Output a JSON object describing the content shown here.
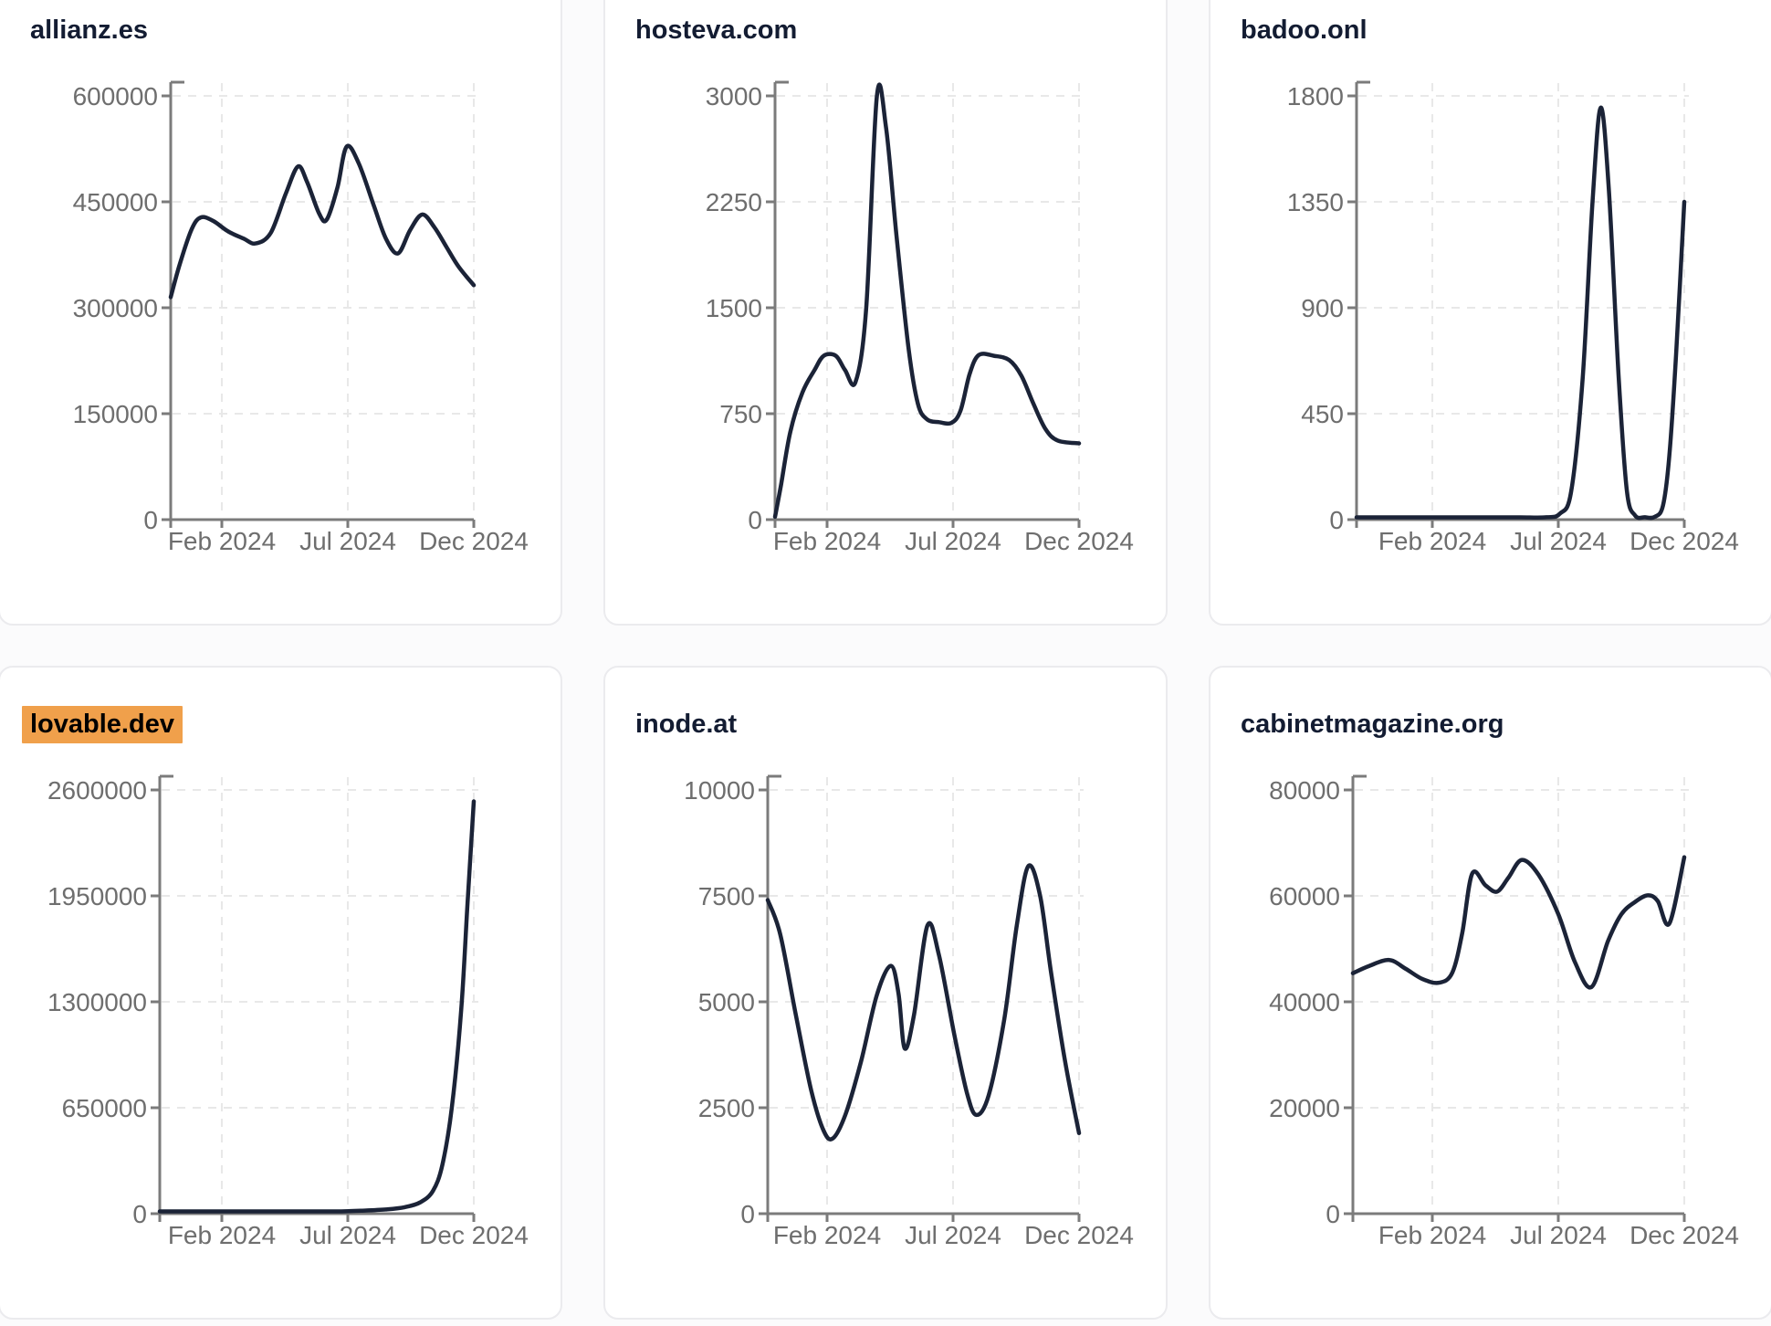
{
  "colors": {
    "page_bg": "#fbfbfc",
    "card_bg": "#ffffff",
    "card_border": "#ebebee",
    "title": "#131c32",
    "highlight": "#F0A04B",
    "line": "#1b2337",
    "axis": "#7b7b7b",
    "tick_label": "#6e6e6e",
    "gridline": "#e8e8e8"
  },
  "chart_data": [
    {
      "type": "line",
      "title": "allianz.es",
      "highlighted": false,
      "x_tick_labels": [
        "Feb 2024",
        "Jul 2024",
        "Dec 2024"
      ],
      "y_ticks": [
        0,
        150000,
        300000,
        450000,
        600000
      ],
      "ylim": [
        0,
        600000
      ],
      "grid": true,
      "legend": "none",
      "points": [
        [
          0.0,
          315000
        ],
        [
          0.03,
          362000
        ],
        [
          0.07,
          412000
        ],
        [
          0.1,
          428000
        ],
        [
          0.14,
          423000
        ],
        [
          0.19,
          408000
        ],
        [
          0.24,
          398000
        ],
        [
          0.28,
          391000
        ],
        [
          0.33,
          406000
        ],
        [
          0.38,
          462000
        ],
        [
          0.42,
          500000
        ],
        [
          0.45,
          478000
        ],
        [
          0.49,
          433000
        ],
        [
          0.515,
          425000
        ],
        [
          0.55,
          470000
        ],
        [
          0.58,
          528000
        ],
        [
          0.62,
          505000
        ],
        [
          0.67,
          445000
        ],
        [
          0.71,
          398000
        ],
        [
          0.75,
          377000
        ],
        [
          0.79,
          410000
        ],
        [
          0.83,
          432000
        ],
        [
          0.87,
          414000
        ],
        [
          0.91,
          386000
        ],
        [
          0.95,
          358000
        ],
        [
          1.0,
          332000
        ]
      ]
    },
    {
      "type": "line",
      "title": "hosteva.com",
      "highlighted": false,
      "x_tick_labels": [
        "Feb 2024",
        "Jul 2024",
        "Dec 2024"
      ],
      "y_ticks": [
        0,
        750,
        1500,
        2250,
        3000
      ],
      "ylim": [
        0,
        3000
      ],
      "grid": true,
      "legend": "none",
      "points": [
        [
          0.0,
          20
        ],
        [
          0.02,
          250
        ],
        [
          0.05,
          620
        ],
        [
          0.09,
          900
        ],
        [
          0.13,
          1060
        ],
        [
          0.16,
          1160
        ],
        [
          0.2,
          1160
        ],
        [
          0.23,
          1060
        ],
        [
          0.265,
          975
        ],
        [
          0.3,
          1500
        ],
        [
          0.335,
          3000
        ],
        [
          0.365,
          2780
        ],
        [
          0.4,
          2000
        ],
        [
          0.44,
          1200
        ],
        [
          0.47,
          820
        ],
        [
          0.5,
          710
        ],
        [
          0.54,
          690
        ],
        [
          0.58,
          685
        ],
        [
          0.61,
          770
        ],
        [
          0.64,
          1030
        ],
        [
          0.67,
          1165
        ],
        [
          0.72,
          1160
        ],
        [
          0.77,
          1130
        ],
        [
          0.81,
          1020
        ],
        [
          0.85,
          820
        ],
        [
          0.89,
          640
        ],
        [
          0.93,
          560
        ],
        [
          1.0,
          540
        ]
      ]
    },
    {
      "type": "line",
      "title": "badoo.onl",
      "highlighted": false,
      "x_tick_labels": [
        "Feb 2024",
        "Jul 2024",
        "Dec 2024"
      ],
      "y_ticks": [
        0,
        450,
        900,
        1350,
        1800
      ],
      "ylim": [
        0,
        1800
      ],
      "grid": true,
      "legend": "none",
      "points": [
        [
          0.0,
          8
        ],
        [
          0.1,
          8
        ],
        [
          0.2,
          8
        ],
        [
          0.3,
          8
        ],
        [
          0.4,
          8
        ],
        [
          0.5,
          8
        ],
        [
          0.58,
          10
        ],
        [
          0.62,
          25
        ],
        [
          0.655,
          120
        ],
        [
          0.69,
          600
        ],
        [
          0.72,
          1350
        ],
        [
          0.745,
          1750
        ],
        [
          0.77,
          1400
        ],
        [
          0.8,
          600
        ],
        [
          0.825,
          120
        ],
        [
          0.85,
          18
        ],
        [
          0.88,
          10
        ],
        [
          0.91,
          12
        ],
        [
          0.935,
          60
        ],
        [
          0.955,
          280
        ],
        [
          0.975,
          700
        ],
        [
          1.0,
          1350
        ]
      ]
    },
    {
      "type": "line",
      "title": "lovable.dev",
      "highlighted": true,
      "x_tick_labels": [
        "Feb 2024",
        "Jul 2024",
        "Dec 2024"
      ],
      "y_ticks": [
        0,
        650000,
        1300000,
        1950000,
        2600000
      ],
      "ylim": [
        0,
        2600000
      ],
      "grid": true,
      "legend": "none",
      "points": [
        [
          0.0,
          3000
        ],
        [
          0.08,
          4000
        ],
        [
          0.16,
          6000
        ],
        [
          0.24,
          9000
        ],
        [
          0.32,
          8000
        ],
        [
          0.4,
          10000
        ],
        [
          0.48,
          12000
        ],
        [
          0.56,
          14000
        ],
        [
          0.64,
          18000
        ],
        [
          0.72,
          26000
        ],
        [
          0.78,
          40000
        ],
        [
          0.83,
          70000
        ],
        [
          0.87,
          140000
        ],
        [
          0.9,
          300000
        ],
        [
          0.93,
          650000
        ],
        [
          0.96,
          1250000
        ],
        [
          0.98,
          1900000
        ],
        [
          1.0,
          2530000
        ]
      ]
    },
    {
      "type": "line",
      "title": "inode.at",
      "highlighted": false,
      "x_tick_labels": [
        "Feb 2024",
        "Jul 2024",
        "Dec 2024"
      ],
      "y_ticks": [
        0,
        2500,
        5000,
        7500,
        10000
      ],
      "ylim": [
        0,
        10000
      ],
      "grid": true,
      "legend": "none",
      "points": [
        [
          0.0,
          7400
        ],
        [
          0.04,
          6600
        ],
        [
          0.09,
          4700
        ],
        [
          0.14,
          2900
        ],
        [
          0.18,
          1950
        ],
        [
          0.21,
          1780
        ],
        [
          0.25,
          2350
        ],
        [
          0.3,
          3600
        ],
        [
          0.35,
          5150
        ],
        [
          0.395,
          5850
        ],
        [
          0.42,
          5200
        ],
        [
          0.44,
          3900
        ],
        [
          0.47,
          4700
        ],
        [
          0.513,
          6800
        ],
        [
          0.55,
          6100
        ],
        [
          0.6,
          4200
        ],
        [
          0.64,
          2850
        ],
        [
          0.67,
          2330
        ],
        [
          0.71,
          2800
        ],
        [
          0.76,
          4600
        ],
        [
          0.8,
          6800
        ],
        [
          0.837,
          8200
        ],
        [
          0.875,
          7500
        ],
        [
          0.91,
          5700
        ],
        [
          0.955,
          3600
        ],
        [
          1.0,
          1900
        ]
      ]
    },
    {
      "type": "line",
      "title": "cabinetmagazine.org",
      "highlighted": false,
      "x_tick_labels": [
        "Feb 2024",
        "Jul 2024",
        "Dec 2024"
      ],
      "y_ticks": [
        0,
        20000,
        40000,
        60000,
        80000
      ],
      "ylim": [
        0,
        80000
      ],
      "grid": true,
      "legend": "none",
      "points": [
        [
          0.0,
          45400
        ],
        [
          0.05,
          46800
        ],
        [
          0.11,
          47900
        ],
        [
          0.16,
          46200
        ],
        [
          0.21,
          44300
        ],
        [
          0.26,
          43600
        ],
        [
          0.3,
          45500
        ],
        [
          0.33,
          53000
        ],
        [
          0.36,
          64200
        ],
        [
          0.4,
          62000
        ],
        [
          0.435,
          60800
        ],
        [
          0.47,
          63500
        ],
        [
          0.51,
          66800
        ],
        [
          0.56,
          64000
        ],
        [
          0.62,
          56500
        ],
        [
          0.67,
          47500
        ],
        [
          0.72,
          42800
        ],
        [
          0.77,
          51500
        ],
        [
          0.81,
          56500
        ],
        [
          0.85,
          58800
        ],
        [
          0.89,
          60100
        ],
        [
          0.92,
          59000
        ],
        [
          0.955,
          54800
        ],
        [
          1.0,
          67300
        ]
      ]
    }
  ]
}
